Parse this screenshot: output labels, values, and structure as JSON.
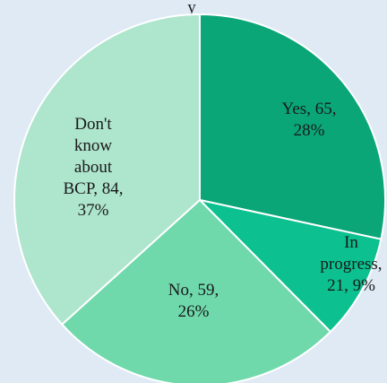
{
  "chart_data": {
    "type": "pie",
    "title": "",
    "top_text_fragment": "y",
    "slices": [
      {
        "label": "Yes",
        "value": 65,
        "percent": "28%",
        "color": "#0aa678",
        "label_lines": [
          "Yes, 65,",
          "28%"
        ]
      },
      {
        "label": "In progress",
        "value": 21,
        "percent": "9%",
        "color": "#0cc08f",
        "label_lines": [
          "In",
          "progress,",
          "21, 9%"
        ]
      },
      {
        "label": "No",
        "value": 59,
        "percent": "26%",
        "color": "#6fd9ac",
        "label_lines": [
          "No, 59,",
          "26%"
        ]
      },
      {
        "label": "Don't know about BCP",
        "value": 84,
        "percent": "37%",
        "color": "#aee5cd",
        "label_lines": [
          "Don't",
          "know",
          "about",
          "BCP, 84,",
          "37%"
        ]
      }
    ]
  }
}
